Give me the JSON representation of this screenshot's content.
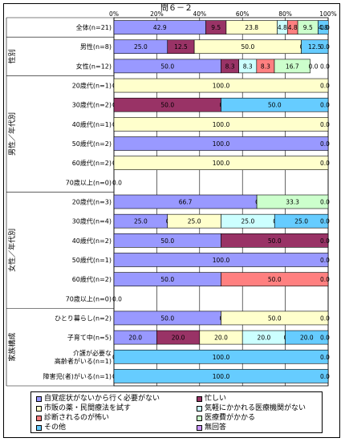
{
  "chart_data": {
    "type": "bar",
    "stacked": "percent",
    "orientation": "horizontal",
    "title": "問６－２",
    "x_ticks": [
      "0%",
      "20%",
      "40%",
      "60%",
      "80%",
      "100%"
    ],
    "xlim": [
      0,
      100
    ],
    "legend_position": "bottom",
    "grid": true,
    "series": [
      {
        "name": "自覚症状がないから行く必要がない",
        "color": "#9999ff"
      },
      {
        "name": "忙しい",
        "color": "#993366"
      },
      {
        "name": "市販の薬・民間療法を試す",
        "color": "#ffffcc"
      },
      {
        "name": "気軽にかかれる医療機関がない",
        "color": "#ccffff"
      },
      {
        "name": "診断されるのが怖い",
        "color": "#ff8080"
      },
      {
        "name": "医療費がかかる",
        "color": "#ccffcc"
      },
      {
        "name": "その他",
        "color": "#66ccff"
      },
      {
        "name": "無回答",
        "color": "#cc99ff"
      }
    ],
    "groups": [
      {
        "label": "",
        "start": 0,
        "end": 0
      },
      {
        "label": "性別",
        "start": 1,
        "end": 2
      },
      {
        "label": "男性／年代別",
        "start": 3,
        "end": 8
      },
      {
        "label": "女性／年代別",
        "start": 9,
        "end": 14
      },
      {
        "label": "家族構成",
        "start": 15,
        "end": 18
      }
    ],
    "rows": [
      {
        "category": "全体(n=21)",
        "values": [
          42.9,
          9.5,
          23.8,
          4.8,
          4.8,
          9.5,
          4.8,
          0.0
        ],
        "labels": [
          "42.9",
          "9.5",
          "23.8",
          "4.8",
          "4.8",
          "9.5",
          "4.8",
          "0.0"
        ]
      },
      {
        "category": "男性(n=8)",
        "values": [
          25.0,
          12.5,
          50.0,
          0.0,
          0.0,
          0.0,
          12.5,
          0.0
        ],
        "labels": [
          "25.0",
          "12.5",
          "50.0",
          "0.0",
          "",
          "",
          "12.5",
          "0.0"
        ]
      },
      {
        "category": "女性(n=12)",
        "values": [
          50.0,
          8.3,
          0.0,
          8.3,
          8.3,
          16.7,
          0.0,
          0.0
        ],
        "labels": [
          "50.0",
          "8.3",
          "",
          "8.3",
          "8.3",
          "16.7",
          "0.0",
          "0.0"
        ]
      },
      {
        "category": "20歳代(n=1)",
        "values": [
          0,
          0,
          100.0,
          0,
          0,
          0,
          0,
          0
        ],
        "labels": [
          "0.0",
          "",
          "100.0",
          "",
          "",
          "",
          "",
          "0.0"
        ]
      },
      {
        "category": "30歳代(n=2)",
        "values": [
          0,
          50.0,
          0,
          0,
          0,
          0,
          50.0,
          0
        ],
        "labels": [
          "0.0",
          "50.0",
          "",
          "0.0",
          "",
          "",
          "50.0",
          "0.0"
        ]
      },
      {
        "category": "40歳代(n=1)",
        "values": [
          0,
          0,
          100.0,
          0,
          0,
          0,
          0,
          0
        ],
        "labels": [
          "0.0",
          "",
          "100.0",
          "",
          "",
          "",
          "",
          "0.0"
        ]
      },
      {
        "category": "50歳代(n=2)",
        "values": [
          100.0,
          0,
          0,
          0,
          0,
          0,
          0,
          0
        ],
        "labels": [
          "100.0",
          "",
          "",
          "",
          "",
          "",
          "",
          "0.0"
        ]
      },
      {
        "category": "60歳代(n=2)",
        "values": [
          0,
          0,
          100.0,
          0,
          0,
          0,
          0,
          0
        ],
        "labels": [
          "0.0",
          "",
          "100.0",
          "",
          "",
          "",
          "",
          "0.0"
        ]
      },
      {
        "category": "70歳以上(n=0)",
        "values": [
          0,
          0,
          0,
          0,
          0,
          0,
          0,
          0
        ],
        "labels": [
          "0.0",
          "",
          "",
          "",
          "",
          "",
          "",
          ""
        ]
      },
      {
        "category": "20歳代(n=3)",
        "values": [
          66.7,
          0,
          0,
          0,
          0,
          33.3,
          0,
          0
        ],
        "labels": [
          "66.7",
          "",
          "",
          "0.0",
          "",
          "33.3",
          "",
          "0.0"
        ]
      },
      {
        "category": "30歳代(n=4)",
        "values": [
          25.0,
          0,
          25.0,
          25.0,
          0,
          0,
          25.0,
          0
        ],
        "labels": [
          "25.0",
          "0.0",
          "25.0",
          "25.0",
          "",
          "0.0",
          "25.0",
          "0.0"
        ]
      },
      {
        "category": "40歳代(n=2)",
        "values": [
          50.0,
          50.0,
          0,
          0,
          0,
          0,
          0,
          0
        ],
        "labels": [
          "50.0",
          "50.0",
          "",
          "",
          "",
          "",
          "",
          "0.0"
        ]
      },
      {
        "category": "50歳代(n=1)",
        "values": [
          100.0,
          0,
          0,
          0,
          0,
          0,
          0,
          0
        ],
        "labels": [
          "100.0",
          "",
          "",
          "",
          "",
          "",
          "",
          "0.0"
        ]
      },
      {
        "category": "60歳代(n=2)",
        "values": [
          50.0,
          0,
          0,
          0,
          50.0,
          0,
          0,
          0
        ],
        "labels": [
          "50.0",
          "",
          "",
          "",
          "50.0",
          "",
          "",
          "0.0"
        ]
      },
      {
        "category": "70歳以上(n=0)",
        "values": [
          0,
          0,
          0,
          0,
          0,
          0,
          0,
          0
        ],
        "labels": [
          "0.0",
          "",
          "",
          "",
          "",
          "",
          "",
          ""
        ]
      },
      {
        "category": "ひとり暮らし(n=2)",
        "values": [
          50.0,
          0,
          50.0,
          0,
          0,
          0,
          0,
          0
        ],
        "labels": [
          "50.0",
          "0.0",
          "50.0",
          "",
          "",
          "",
          "",
          "0.0"
        ]
      },
      {
        "category": "子育て中(n=5)",
        "values": [
          20.0,
          20.0,
          20.0,
          20.0,
          0,
          0,
          20.0,
          0
        ],
        "labels": [
          "20.0",
          "20.0",
          "20.0",
          "20.0",
          "0.0",
          "",
          "20.0",
          "0.0"
        ]
      },
      {
        "category": "介護が必要な高齢者がいる(n=1)",
        "display": [
          "介護が必要な",
          "高齢者がいる(n=1)"
        ],
        "values": [
          0,
          0,
          0,
          0,
          0,
          0,
          100.0,
          0
        ],
        "labels": [
          "0.0",
          "",
          "",
          "",
          "",
          "",
          "100.0",
          "0.0"
        ]
      },
      {
        "category": "障害児(者)がいる(n=1)",
        "values": [
          0,
          0,
          0,
          0,
          0,
          0,
          100.0,
          0
        ],
        "labels": [
          "0.0",
          "",
          "",
          "",
          "",
          "",
          "100.0",
          "0.0"
        ]
      }
    ]
  }
}
